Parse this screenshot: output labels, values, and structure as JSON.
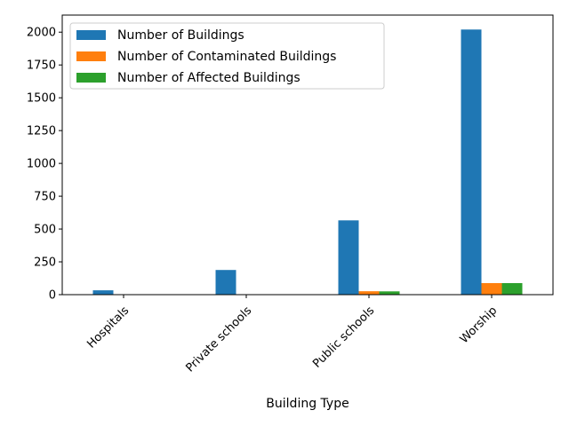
{
  "chart_data": {
    "type": "bar",
    "title": "",
    "xlabel": "Building Type",
    "ylabel": "",
    "categories": [
      "Hospitals",
      "Private schools",
      "Public schools",
      "Worship"
    ],
    "series": [
      {
        "name": "Number of Buildings",
        "values": [
          33,
          188,
          566,
          2020
        ],
        "color": "#1f77b4"
      },
      {
        "name": "Number of Contaminated Buildings",
        "values": [
          2,
          3,
          26,
          88
        ],
        "color": "#ff7f0e"
      },
      {
        "name": "Number of Affected Buildings",
        "values": [
          2,
          3,
          25,
          88
        ],
        "color": "#2ca02c"
      }
    ],
    "ylim": [
      0,
      2130
    ],
    "yticks": [
      "0",
      "250",
      "500",
      "750",
      "1000",
      "1250",
      "1500",
      "1750",
      "2000"
    ],
    "grid": false,
    "legend_position": "top-left"
  }
}
